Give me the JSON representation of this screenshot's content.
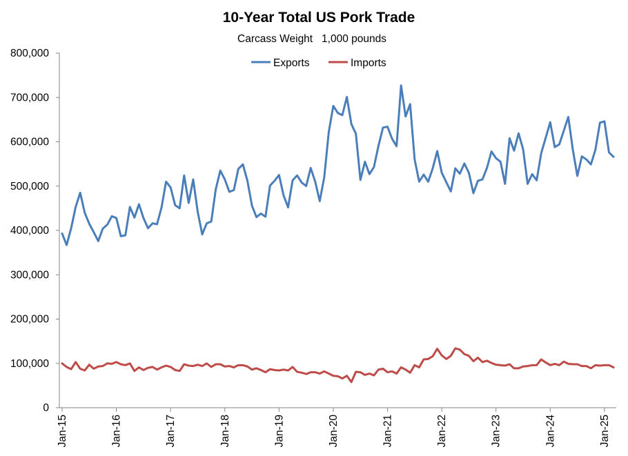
{
  "chart_data": {
    "type": "line",
    "title": "10-Year Total US Pork Trade",
    "subtitle": "Carcass Weight   1,000 pounds",
    "xlabel": "",
    "ylabel": "",
    "ylim": [
      0,
      800000
    ],
    "y_ticks": [
      0,
      100000,
      200000,
      300000,
      400000,
      500000,
      600000,
      700000,
      800000
    ],
    "y_tick_labels": [
      "0",
      "100,000",
      "200,000",
      "300,000",
      "400,000",
      "500,000",
      "600,000",
      "700,000",
      "800,000"
    ],
    "x_tick_labels": [
      "Jan-15",
      "Jan-16",
      "Jan-17",
      "Jan-18",
      "Jan-19",
      "Jan-20",
      "Jan-21",
      "Jan-22",
      "Jan-23",
      "Jan-24",
      "Jan-25"
    ],
    "x_start": "Jan-15",
    "x_end": "Jan-25",
    "grid": false,
    "legend_position": "top-center",
    "series": [
      {
        "name": "Exports",
        "color": "#4a7ebb",
        "values": [
          393000,
          367000,
          405000,
          453000,
          485000,
          440000,
          415000,
          396000,
          376000,
          404000,
          413000,
          432000,
          428000,
          387000,
          389000,
          453000,
          429000,
          459000,
          428000,
          405000,
          416000,
          414000,
          452000,
          510000,
          497000,
          457000,
          450000,
          524000,
          462000,
          515000,
          442000,
          391000,
          416000,
          420000,
          493000,
          535000,
          515000,
          487000,
          491000,
          539000,
          549000,
          512000,
          456000,
          430000,
          438000,
          431000,
          501000,
          512000,
          525000,
          479000,
          452000,
          513000,
          524000,
          508000,
          500000,
          541000,
          510000,
          466000,
          520000,
          622000,
          681000,
          665000,
          660000,
          701000,
          640000,
          618000,
          514000,
          555000,
          527000,
          543000,
          591000,
          632000,
          634000,
          607000,
          590000,
          727000,
          657000,
          685000,
          560000,
          510000,
          526000,
          510000,
          540000,
          579000,
          530000,
          509000,
          488000,
          540000,
          528000,
          551000,
          530000,
          484000,
          512000,
          515000,
          541000,
          578000,
          563000,
          555000,
          505000,
          608000,
          580000,
          619000,
          583000,
          505000,
          527000,
          513000,
          574000,
          609000,
          644000,
          588000,
          594000,
          625000,
          656000,
          582000,
          523000,
          567000,
          560000,
          549000,
          582000,
          643000,
          646000,
          576000,
          566000
        ]
      },
      {
        "name": "Imports",
        "color": "#be4b48",
        "values": [
          100000,
          92000,
          87000,
          103000,
          88000,
          84000,
          97000,
          88000,
          93000,
          94000,
          100000,
          99000,
          103000,
          98000,
          96000,
          100000,
          83000,
          91000,
          85000,
          90000,
          92000,
          86000,
          91000,
          95000,
          92000,
          85000,
          83000,
          98000,
          95000,
          94000,
          97000,
          94000,
          100000,
          92000,
          98000,
          98000,
          93000,
          94000,
          91000,
          96000,
          96000,
          93000,
          86000,
          89000,
          85000,
          80000,
          87000,
          85000,
          84000,
          86000,
          84000,
          92000,
          81000,
          79000,
          76000,
          80000,
          80000,
          77000,
          82000,
          77000,
          72000,
          71000,
          66000,
          72000,
          58000,
          81000,
          80000,
          74000,
          77000,
          73000,
          86000,
          88000,
          80000,
          82000,
          77000,
          91000,
          86000,
          79000,
          96000,
          91000,
          109000,
          110000,
          116000,
          133000,
          118000,
          110000,
          117000,
          134000,
          131000,
          121000,
          117000,
          105000,
          113000,
          103000,
          106000,
          101000,
          97000,
          96000,
          95000,
          98000,
          89000,
          89000,
          93000,
          94000,
          96000,
          96000,
          109000,
          102000,
          96000,
          99000,
          96000,
          104000,
          99000,
          98000,
          98000,
          94000,
          94000,
          89000,
          96000,
          95000,
          96000,
          96000,
          91000
        ]
      }
    ]
  }
}
